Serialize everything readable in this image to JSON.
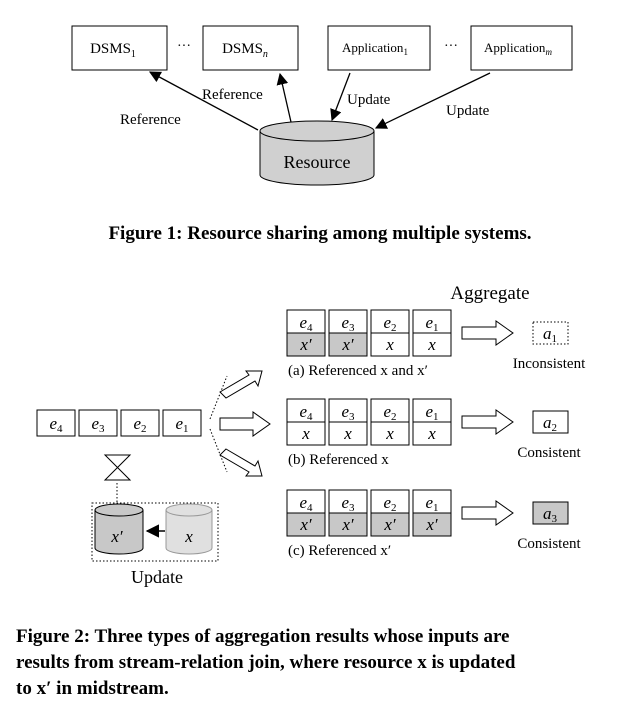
{
  "figure1": {
    "dsms1": "DSMS",
    "dsms1_sub": "1",
    "dsmsn": "DSMS",
    "dsmsn_sub": "n",
    "app1": "Application",
    "app1_sub": "1",
    "appm": "Application",
    "appm_sub": "m",
    "ellipsis": "···",
    "reference_left": "Reference",
    "reference_mid": "Reference",
    "update_left": "Update",
    "update_right": "Update",
    "resource": "Resource",
    "caption": "Figure 1: Resource sharing among multiple systems."
  },
  "figure2": {
    "aggregate_title": "Aggregate",
    "stream_labels": [
      "e",
      "e",
      "e",
      "e"
    ],
    "stream_subs": [
      "4",
      "3",
      "2",
      "1"
    ],
    "cases": [
      {
        "caption": "(a) Referenced x and x′",
        "row2": [
          "x′",
          "x′",
          "x",
          "x"
        ],
        "shaded": [
          true,
          true,
          false,
          false
        ],
        "result": "a",
        "result_sub": "1",
        "status": "Inconsistent"
      },
      {
        "caption": "(b) Referenced x",
        "row2": [
          "x",
          "x",
          "x",
          "x"
        ],
        "shaded": [
          false,
          false,
          false,
          false
        ],
        "result": "a",
        "result_sub": "2",
        "status": "Consistent"
      },
      {
        "caption": "(c) Referenced x′",
        "row2": [
          "x′",
          "x′",
          "x′",
          "x′"
        ],
        "shaded": [
          true,
          true,
          true,
          true
        ],
        "result": "a",
        "result_sub": "3",
        "status": "Consistent"
      }
    ],
    "cyl_new": "x′",
    "cyl_old": "x",
    "update_label": "Update",
    "caption_lines": [
      "Figure 2: Three types of aggregation results whose inputs are",
      "results from stream-relation join, where resource x is updated",
      "to x′ in midstream."
    ]
  },
  "colors": {
    "shade": "#c8c8c8",
    "resource_fill": "#d0d0d0",
    "ink": "#000000"
  }
}
